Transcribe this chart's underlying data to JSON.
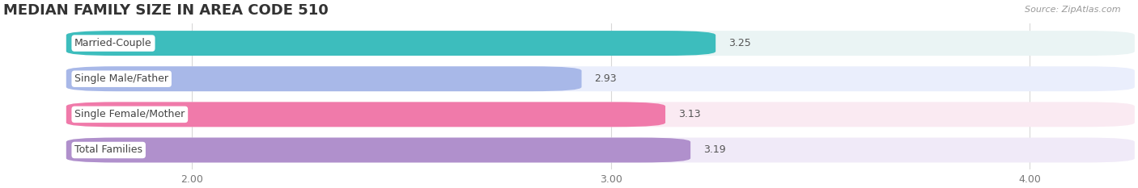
{
  "title": "MEDIAN FAMILY SIZE IN AREA CODE 510",
  "source": "Source: ZipAtlas.com",
  "categories": [
    "Married-Couple",
    "Single Male/Father",
    "Single Female/Mother",
    "Total Families"
  ],
  "values": [
    3.25,
    2.93,
    3.13,
    3.19
  ],
  "bar_colors": [
    "#3dbdbd",
    "#a8b8e8",
    "#f07aaa",
    "#b090cc"
  ],
  "bg_colors": [
    "#eaf4f4",
    "#eaeefc",
    "#faeaf2",
    "#f0eaf8"
  ],
  "xlim": [
    1.55,
    4.25
  ],
  "xstart": 1.7,
  "xticks": [
    2.0,
    3.0,
    4.0
  ],
  "xtick_labels": [
    "2.00",
    "3.00",
    "4.00"
  ],
  "label_fontsize": 9,
  "value_fontsize": 9,
  "title_fontsize": 13,
  "bar_height": 0.7,
  "figsize": [
    14.06,
    2.33
  ],
  "bg_color": "#ffffff"
}
